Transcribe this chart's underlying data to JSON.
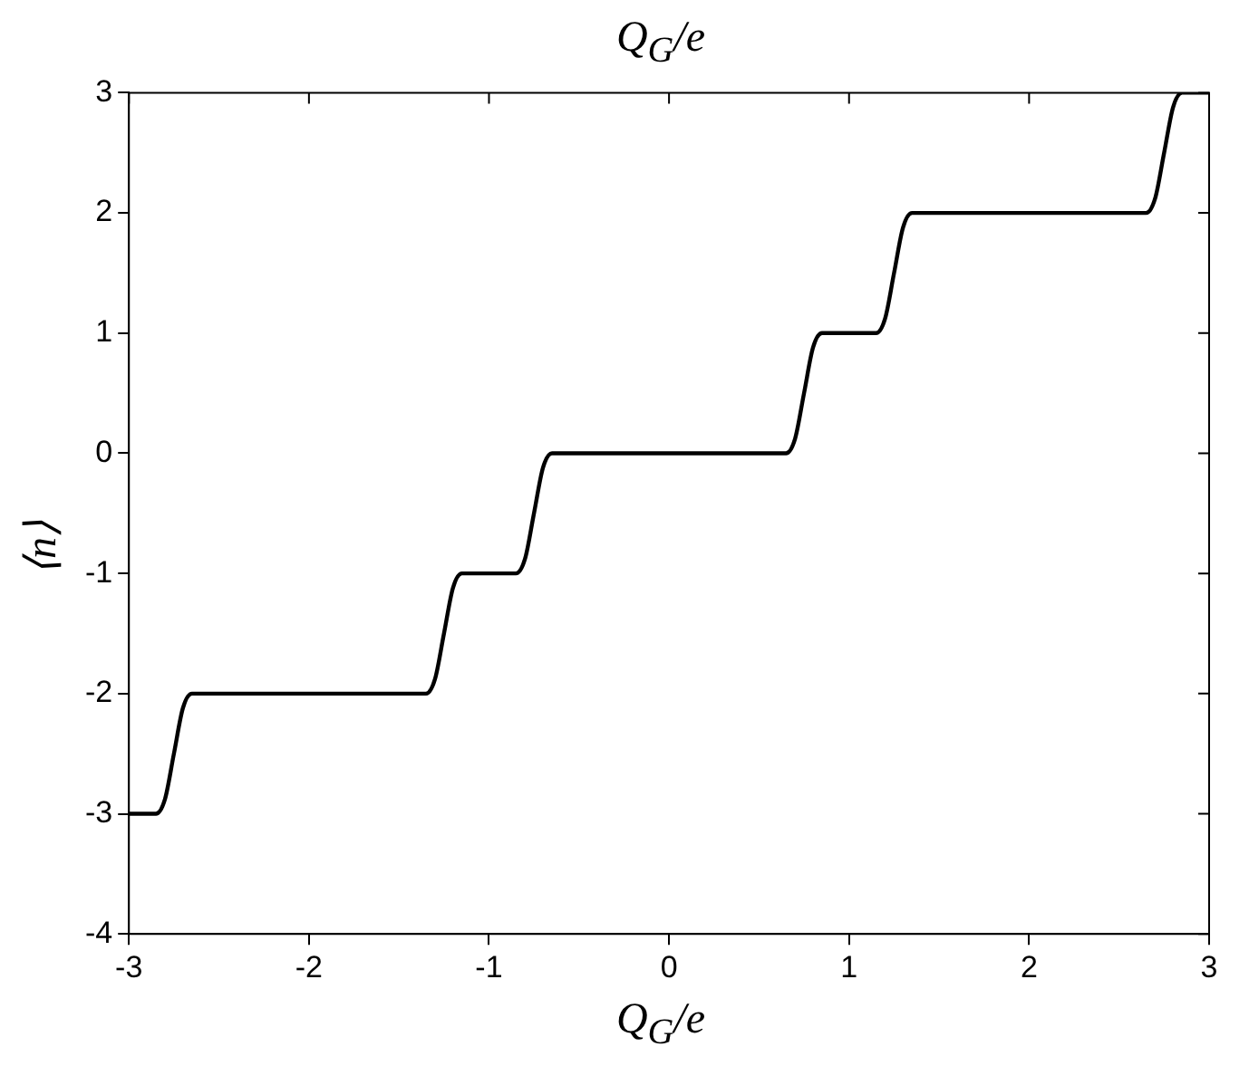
{
  "chart_data": {
    "type": "line",
    "title": "Q$_{G}$/e",
    "xlabel": "Q$_{G}$/e",
    "ylabel": "⟨n⟩",
    "xlim": [
      -3,
      3
    ],
    "xticks": [
      -3,
      -2,
      -1,
      0,
      1,
      2,
      3
    ],
    "ylim": [
      -4,
      3
    ],
    "yticks": [
      -4,
      -3,
      -2,
      -1,
      0,
      1,
      2,
      3
    ],
    "grid": false,
    "legend": false,
    "marker": "none",
    "line_style": "solid",
    "series": [
      {
        "color": "#000000",
        "x": [
          -3,
          -2.85,
          -2.8,
          -2.75,
          -2.7,
          -2.65,
          -1.35,
          -1.3,
          -1.25,
          -1.2,
          -1.15,
          -0.85,
          -0.8,
          -0.75,
          -0.7,
          -0.65,
          0.65,
          0.7,
          0.75,
          0.8,
          0.85,
          1.15,
          1.2,
          1.25,
          1.3,
          1.35,
          2.65,
          2.7,
          2.75,
          2.8,
          2.85,
          3
        ],
        "values": [
          -3,
          -3,
          -2.88,
          -2.5,
          -2.12,
          -2,
          -2,
          -1.88,
          -1.5,
          -1.12,
          -1,
          -1,
          -0.88,
          -0.5,
          -0.12,
          0,
          0,
          0.12,
          0.5,
          0.88,
          1,
          1,
          1.12,
          1.5,
          1.88,
          2,
          2,
          2.12,
          2.5,
          2.88,
          3,
          3
        ]
      }
    ]
  }
}
